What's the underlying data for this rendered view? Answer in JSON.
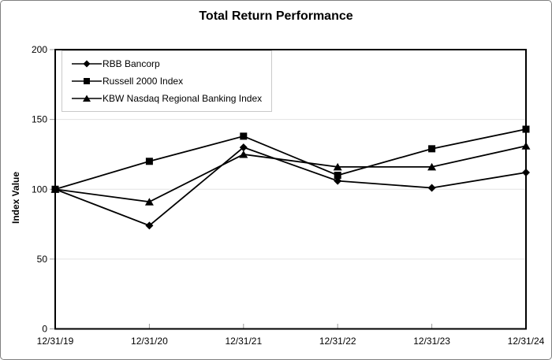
{
  "window": {
    "background": "#ffffff",
    "frame_border_color": "#7f7f7f"
  },
  "chart_data": {
    "type": "line",
    "title": "Total Return Performance",
    "ylabel": "Index Value",
    "xlabel": "",
    "categories": [
      "12/31/19",
      "12/31/20",
      "12/31/21",
      "12/31/22",
      "12/31/23",
      "12/31/24"
    ],
    "y_ticks": [
      0,
      50,
      100,
      150,
      200
    ],
    "ylim": [
      0,
      200
    ],
    "grid": "horizontal",
    "legend_position": "top-left-inside",
    "series": [
      {
        "name": "RBB Bancorp",
        "marker": "diamond",
        "color": "#000000",
        "values": [
          100,
          74,
          130,
          106,
          101,
          112
        ]
      },
      {
        "name": "Russell 2000 Index",
        "marker": "square",
        "color": "#000000",
        "values": [
          100,
          120,
          138,
          110,
          129,
          143
        ]
      },
      {
        "name": "KBW Nasdaq Regional Banking Index",
        "marker": "triangle",
        "color": "#000000",
        "values": [
          100,
          91,
          125,
          116,
          116,
          131
        ]
      }
    ],
    "colors": {
      "series_line": "#000000",
      "gridline": "#e3e3e3",
      "tick": "#9a9a9a",
      "axis_border": "#000000",
      "legend_border": "#c9c9c9"
    }
  }
}
